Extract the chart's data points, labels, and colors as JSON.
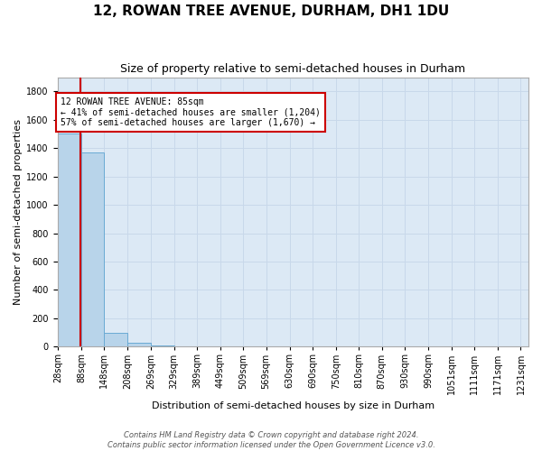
{
  "title": "12, ROWAN TREE AVENUE, DURHAM, DH1 1DU",
  "subtitle": "Size of property relative to semi-detached houses in Durham",
  "xlabel": "Distribution of semi-detached houses by size in Durham",
  "ylabel": "Number of semi-detached properties",
  "footer_line1": "Contains HM Land Registry data © Crown copyright and database right 2024.",
  "footer_line2": "Contains public sector information licensed under the Open Government Licence v3.0.",
  "annotation_title": "12 ROWAN TREE AVENUE: 85sqm",
  "annotation_line2": "← 41% of semi-detached houses are smaller (1,204)",
  "annotation_line3": "57% of semi-detached houses are larger (1,670) →",
  "property_size_sqm": 85,
  "bin_edges": [
    28,
    88,
    148,
    208,
    269,
    329,
    389,
    449,
    509,
    569,
    630,
    690,
    750,
    810,
    870,
    930,
    990,
    1051,
    1111,
    1171,
    1231
  ],
  "bin_counts": [
    1500,
    1370,
    100,
    30,
    10,
    5,
    3,
    2,
    2,
    1,
    1,
    1,
    1,
    1,
    1,
    1,
    1,
    1,
    1,
    1
  ],
  "bar_color": "#b8d4ea",
  "bar_edge_color": "#6aaad4",
  "redline_x": 85,
  "annotation_box_color": "#ffffff",
  "annotation_box_edge": "#cc0000",
  "grid_color": "#c8d8ea",
  "background_color": "#dce9f5",
  "figure_background": "#ffffff",
  "ylim": [
    0,
    1900
  ],
  "yticks": [
    0,
    200,
    400,
    600,
    800,
    1000,
    1200,
    1400,
    1600,
    1800
  ],
  "title_fontsize": 11,
  "subtitle_fontsize": 9,
  "ylabel_fontsize": 8,
  "xlabel_fontsize": 8,
  "tick_fontsize": 7,
  "annotation_fontsize": 7,
  "footer_fontsize": 6
}
